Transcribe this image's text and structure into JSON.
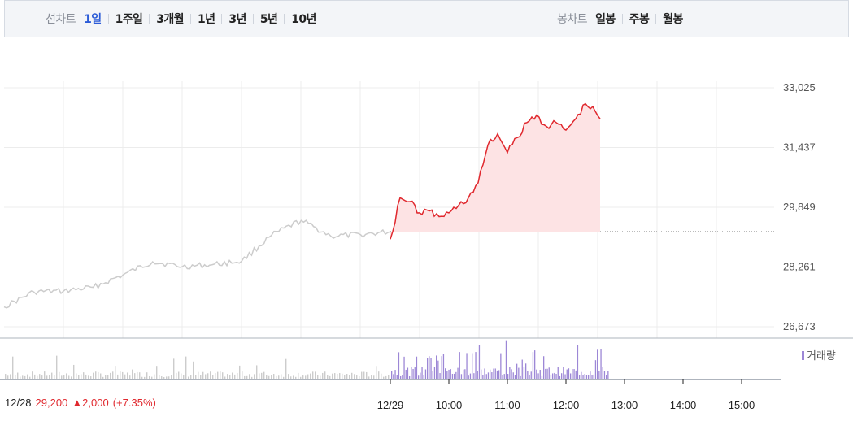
{
  "toolbar": {
    "line_chart_label": "선차트",
    "line_chart_periods": [
      "1일",
      "1주일",
      "3개월",
      "1년",
      "3년",
      "5년",
      "10년"
    ],
    "active_period_index": 0,
    "candle_chart_label": "봉차트",
    "candle_chart_periods": [
      "일봉",
      "주봉",
      "월봉"
    ]
  },
  "summary": {
    "prev_date": "12/28",
    "price": "29,200",
    "change": "▲2,000",
    "change_pct": "(+7.35%)"
  },
  "colors": {
    "accent": "#2b5bd7",
    "up": "#e0282e",
    "today_fill": "#fde3e4",
    "prev_line": "#cccccc",
    "volume": "#9c87d6",
    "prev_volume": "#cccccc"
  },
  "chart_data": {
    "type": "line",
    "title": "",
    "y_ticks": [
      "33,025",
      "31,437",
      "29,849",
      "28,261",
      "26,673"
    ],
    "ylim": [
      26673,
      33025
    ],
    "x_tick_labels": [
      "12/29",
      "10:00",
      "11:00",
      "12:00",
      "13:00",
      "14:00",
      "15:00"
    ],
    "x_tick_times": [
      "09:00",
      "10:00",
      "11:00",
      "12:00",
      "13:00",
      "14:00",
      "15:00"
    ],
    "reference_price": 29200,
    "series": [
      {
        "period": "12/28",
        "x": [
          "09:00",
          "09:30",
          "10:00",
          "10:30",
          "11:00",
          "11:30",
          "12:00",
          "12:30",
          "13:00",
          "13:30",
          "14:00",
          "14:30",
          "15:00",
          "15:30"
        ],
        "values": [
          27200,
          27600,
          27620,
          27720,
          28050,
          28400,
          28270,
          28320,
          28420,
          29100,
          29500,
          29080,
          29120,
          29200
        ]
      },
      {
        "period": "12/29",
        "x": [
          "09:00",
          "09:10",
          "09:20",
          "09:30",
          "09:40",
          "09:50",
          "10:00",
          "10:10",
          "10:20",
          "10:30",
          "10:40",
          "10:50",
          "11:00",
          "11:10",
          "11:20",
          "11:30",
          "11:40",
          "11:50",
          "12:00",
          "12:10",
          "12:20",
          "12:30",
          "12:35"
        ],
        "values": [
          29000,
          30100,
          30000,
          29700,
          29750,
          29600,
          29700,
          29900,
          30100,
          30500,
          31500,
          31800,
          31300,
          31700,
          32100,
          32300,
          32000,
          32100,
          31900,
          32200,
          32600,
          32400,
          32200
        ]
      }
    ],
    "volume": {
      "label": "거래량",
      "shown": true
    }
  }
}
